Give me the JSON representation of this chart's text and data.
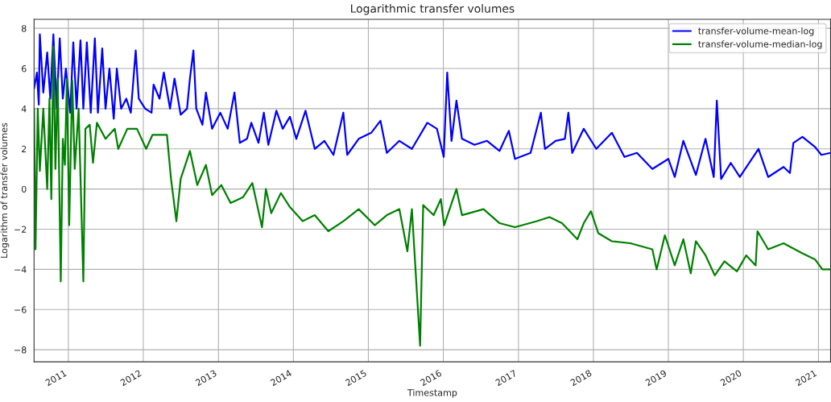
{
  "chart_data": {
    "type": "line",
    "title": "Logarithmic transfer volumes",
    "xlabel": "Timestamp",
    "ylabel": "Logarithm of transfer volumes",
    "xlim": [
      "2010-07-18",
      "2021-03-01"
    ],
    "ylim": [
      -8.6,
      8.45
    ],
    "xticks": [
      "2011",
      "2012",
      "2013",
      "2014",
      "2015",
      "2016",
      "2017",
      "2018",
      "2019",
      "2020",
      "2021"
    ],
    "yticks": [
      {
        "value": -8,
        "label": "−8"
      },
      {
        "value": -6,
        "label": "−6"
      },
      {
        "value": -4,
        "label": "−4"
      },
      {
        "value": -2,
        "label": "−2"
      },
      0,
      2,
      4,
      6,
      8
    ],
    "grid": true,
    "legend": "top right",
    "marker": "none",
    "line_style": "solid",
    "series": [
      {
        "name": "transfer-volume-mean-log",
        "color": "#0000ff",
        "x": [
          "2010-07-18",
          "2010-08-01",
          "2010-08-10",
          "2010-08-15",
          "2010-09-01",
          "2010-09-20",
          "2010-10-05",
          "2010-10-20",
          "2010-11-05",
          "2010-11-20",
          "2010-12-05",
          "2010-12-20",
          "2011-01-10",
          "2011-01-25",
          "2011-02-10",
          "2011-03-01",
          "2011-03-15",
          "2011-04-01",
          "2011-04-20",
          "2011-05-10",
          "2011-05-25",
          "2011-06-15",
          "2011-07-01",
          "2011-07-20",
          "2011-08-10",
          "2011-08-25",
          "2011-09-15",
          "2011-10-10",
          "2011-11-01",
          "2011-11-25",
          "2011-12-10",
          "2012-01-10",
          "2012-02-10",
          "2012-02-20",
          "2012-03-20",
          "2012-04-10",
          "2012-05-10",
          "2012-06-01",
          "2012-07-01",
          "2012-08-01",
          "2012-08-15",
          "2012-09-01",
          "2012-09-15",
          "2012-10-15",
          "2012-11-01",
          "2012-12-01",
          "2013-01-10",
          "2013-02-15",
          "2013-03-20",
          "2013-04-15",
          "2013-05-20",
          "2013-06-10",
          "2013-07-15",
          "2013-08-10",
          "2013-09-01",
          "2013-10-10",
          "2013-11-10",
          "2013-12-15",
          "2014-01-15",
          "2014-03-01",
          "2014-04-15",
          "2014-06-01",
          "2014-07-15",
          "2014-09-01",
          "2014-09-20",
          "2014-11-15",
          "2015-01-15",
          "2015-03-01",
          "2015-04-01",
          "2015-06-01",
          "2015-08-01",
          "2015-10-15",
          "2015-12-01",
          "2016-01-03",
          "2016-01-20",
          "2016-02-10",
          "2016-03-05",
          "2016-04-01",
          "2016-06-01",
          "2016-08-01",
          "2016-10-01",
          "2016-11-15",
          "2016-12-15",
          "2017-03-01",
          "2017-04-20",
          "2017-05-10",
          "2017-07-01",
          "2017-08-15",
          "2017-09-01",
          "2017-09-20",
          "2017-11-15",
          "2018-01-15",
          "2018-04-01",
          "2018-06-01",
          "2018-08-01",
          "2018-10-15",
          "2019-01-01",
          "2019-02-01",
          "2019-03-15",
          "2019-05-15",
          "2019-07-01",
          "2019-08-10",
          "2019-08-25",
          "2019-09-15",
          "2019-11-01",
          "2019-12-15",
          "2020-03-15",
          "2020-05-01",
          "2020-07-15",
          "2020-08-15",
          "2020-09-01",
          "2020-10-15",
          "2020-12-15",
          "2021-01-15",
          "2021-03-01"
        ],
        "values": [
          5.0,
          5.8,
          4.2,
          7.7,
          4.8,
          6.8,
          4.5,
          7.7,
          4.0,
          7.5,
          4.5,
          6.0,
          3.8,
          7.3,
          4.0,
          7.4,
          4.0,
          7.3,
          3.8,
          7.5,
          3.8,
          7.0,
          4.0,
          6.0,
          3.5,
          6.0,
          4.0,
          4.5,
          3.8,
          6.9,
          4.5,
          4.0,
          3.8,
          5.2,
          4.5,
          5.8,
          4.0,
          5.5,
          3.7,
          4.0,
          5.5,
          6.9,
          4.0,
          3.2,
          4.8,
          3.0,
          3.8,
          3.0,
          4.8,
          2.3,
          2.5,
          3.3,
          2.3,
          3.8,
          2.2,
          3.9,
          3.0,
          3.6,
          2.5,
          3.9,
          2.0,
          2.4,
          1.7,
          3.8,
          1.7,
          2.5,
          2.8,
          3.4,
          1.8,
          2.4,
          2.0,
          3.3,
          3.0,
          1.6,
          5.8,
          2.4,
          4.4,
          2.5,
          2.2,
          2.4,
          1.9,
          2.9,
          1.5,
          1.8,
          3.8,
          2.0,
          2.4,
          2.5,
          3.8,
          1.8,
          3.0,
          2.0,
          2.8,
          1.6,
          1.8,
          1.0,
          1.5,
          0.6,
          2.4,
          0.7,
          2.5,
          0.6,
          4.4,
          0.5,
          1.3,
          0.6,
          2.0,
          0.6,
          1.1,
          0.8,
          2.3,
          2.6,
          2.1,
          1.7,
          1.8
        ]
      },
      {
        "name": "transfer-volume-median-log",
        "color": "#008000",
        "x": [
          "2010-07-18",
          "2010-07-25",
          "2010-08-05",
          "2010-08-15",
          "2010-09-01",
          "2010-09-20",
          "2010-10-01",
          "2010-10-10",
          "2010-10-20",
          "2010-10-30",
          "2010-11-10",
          "2010-11-25",
          "2010-12-05",
          "2010-12-15",
          "2010-12-25",
          "2011-01-05",
          "2011-01-20",
          "2011-02-01",
          "2011-02-20",
          "2011-03-15",
          "2011-03-25",
          "2011-04-15",
          "2011-05-01",
          "2011-05-20",
          "2011-07-01",
          "2011-08-15",
          "2011-09-01",
          "2011-10-15",
          "2011-12-01",
          "2012-01-15",
          "2012-02-15",
          "2012-04-25",
          "2012-05-15",
          "2012-06-10",
          "2012-07-01",
          "2012-08-15",
          "2012-09-20",
          "2012-11-01",
          "2012-12-01",
          "2013-01-15",
          "2013-03-01",
          "2013-05-01",
          "2013-06-15",
          "2013-08-01",
          "2013-08-20",
          "2013-09-15",
          "2013-11-01",
          "2013-12-15",
          "2014-02-15",
          "2014-04-15",
          "2014-06-20",
          "2014-09-01",
          "2014-11-15",
          "2015-02-01",
          "2015-04-01",
          "2015-06-01",
          "2015-07-10",
          "2015-08-01",
          "2015-09-10",
          "2015-09-25",
          "2015-11-15",
          "2015-12-20",
          "2016-01-05",
          "2016-03-05",
          "2016-04-01",
          "2016-07-15",
          "2016-10-01",
          "2016-12-15",
          "2017-04-01",
          "2017-06-01",
          "2017-08-01",
          "2017-10-15",
          "2017-11-15",
          "2017-12-20",
          "2018-01-25",
          "2018-04-01",
          "2018-07-01",
          "2018-10-15",
          "2018-11-05",
          "2018-12-15",
          "2019-02-01",
          "2019-03-15",
          "2019-04-20",
          "2019-05-15",
          "2019-07-01",
          "2019-08-15",
          "2019-10-01",
          "2019-12-01",
          "2020-01-15",
          "2020-03-01",
          "2020-03-10",
          "2020-05-01",
          "2020-07-15",
          "2020-10-15",
          "2020-12-15",
          "2021-01-20",
          "2021-03-01"
        ],
        "values": [
          4.0,
          -3.0,
          4.0,
          0.9,
          4.0,
          0.0,
          4.5,
          -0.5,
          7.1,
          1.0,
          5.5,
          -4.6,
          2.5,
          1.2,
          5.5,
          -1.8,
          5.4,
          1.0,
          4.0,
          -4.6,
          3.0,
          3.2,
          1.3,
          3.3,
          2.5,
          3.0,
          2.0,
          3.0,
          3.0,
          2.0,
          2.7,
          2.7,
          0.5,
          -1.6,
          0.5,
          1.9,
          0.2,
          1.2,
          -0.3,
          0.2,
          -0.7,
          -0.4,
          0.3,
          -1.9,
          0.0,
          -1.2,
          -0.2,
          -0.9,
          -1.6,
          -1.3,
          -2.1,
          -1.6,
          -1.0,
          -1.8,
          -1.3,
          -1.0,
          -3.1,
          -1.0,
          -7.8,
          -0.8,
          -1.3,
          -0.5,
          -1.8,
          0.0,
          -1.3,
          -1.0,
          -1.7,
          -1.9,
          -1.6,
          -1.4,
          -1.7,
          -2.5,
          -1.7,
          -1.1,
          -2.2,
          -2.6,
          -2.7,
          -3.0,
          -4.0,
          -2.3,
          -3.8,
          -2.5,
          -4.2,
          -2.6,
          -3.3,
          -4.3,
          -3.6,
          -4.1,
          -3.3,
          -3.8,
          -2.1,
          -3.0,
          -2.7,
          -3.2,
          -3.5,
          -4.0,
          -4.0
        ]
      }
    ]
  }
}
